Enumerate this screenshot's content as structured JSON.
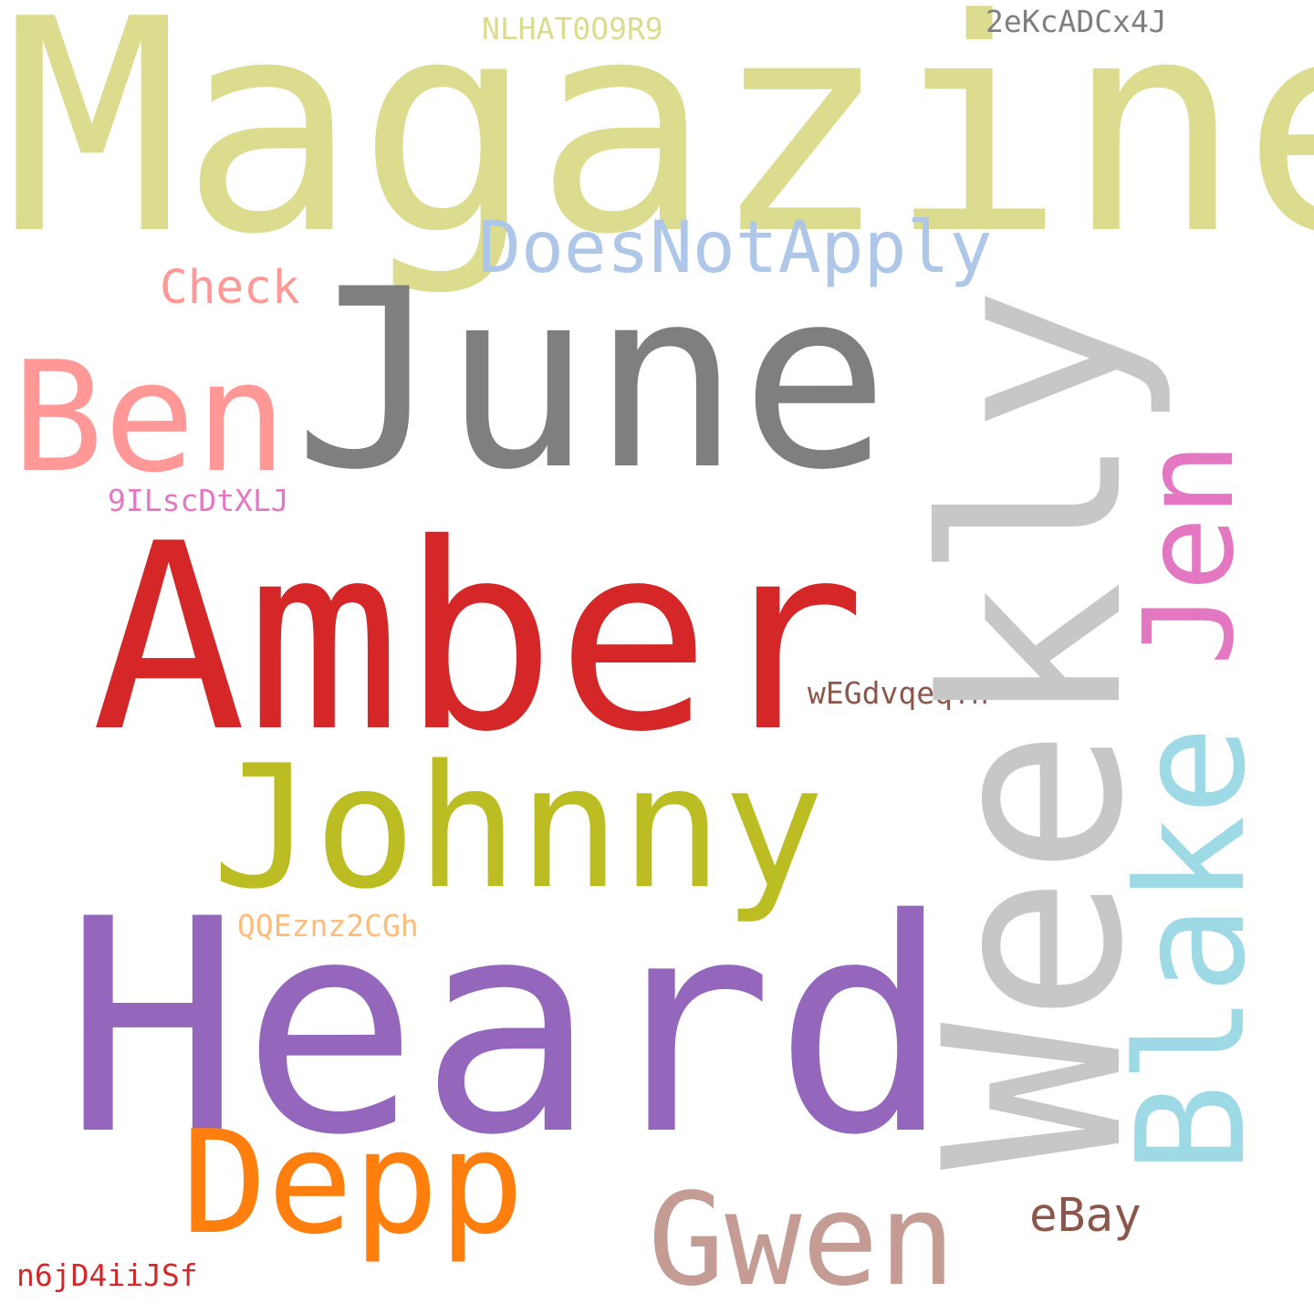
{
  "words": {
    "magazine": {
      "text": "Magazine",
      "color": "#dbdc8d"
    },
    "june": {
      "text": "June",
      "color": "#7f7f7f"
    },
    "amber": {
      "text": "Amber",
      "color": "#d62728"
    },
    "heard": {
      "text": "Heard",
      "color": "#9467bd"
    },
    "weekly": {
      "text": "Weekly",
      "color": "#c7c7c7"
    },
    "johnny": {
      "text": "Johnny",
      "color": "#bcbd22"
    },
    "ben": {
      "text": "Ben",
      "color": "#ff9896"
    },
    "depp": {
      "text": "Depp",
      "color": "#ff7f0e"
    },
    "gwen": {
      "text": "Gwen",
      "color": "#c49c94"
    },
    "blake": {
      "text": "Blake",
      "color": "#9edae5"
    },
    "jen": {
      "text": "Jen",
      "color": "#e377c2"
    },
    "doesnotapply": {
      "text": "DoesNotApply",
      "color": "#aec7e8"
    },
    "check": {
      "text": "Check",
      "color": "#ff9896"
    },
    "ebay": {
      "text": "eBay",
      "color": "#8c564b"
    },
    "nlhat": {
      "text": "NLHAT0O9R9",
      "color": "#dbdc8d"
    },
    "twoekc": {
      "text": "2eKcADCx4J",
      "color": "#7f7f7f"
    },
    "nineils": {
      "text": "9ILscDtXLJ",
      "color": "#e377c2"
    },
    "wegd": {
      "text": "wEGdvqeqYh",
      "color": "#8c564b"
    },
    "qqez": {
      "text": "QQEznz2CGh",
      "color": "#ffbb78"
    },
    "n6jd": {
      "text": "n6jD4iiJSf",
      "color": "#d62728"
    }
  }
}
